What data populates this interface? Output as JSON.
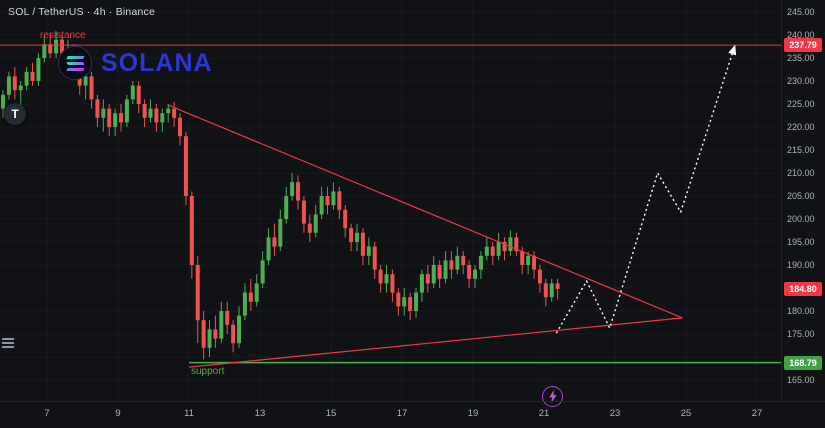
{
  "header": {
    "symbol_title": "SOL / TetherUS · 4h · Binance"
  },
  "watermark": {
    "text": "SOLANA"
  },
  "toolbar": {
    "t_badge": "T"
  },
  "annotations": {
    "resistance_label": "resistance",
    "support_label": "support"
  },
  "colors": {
    "background": "#101216",
    "up": "#4caf50",
    "down": "#ef5350",
    "line_red": "#f23645",
    "line_green": "#4caf50",
    "projection_white": "#ffffff",
    "grid": "rgba(255,255,255,0.035)",
    "axis_text": "#aeb3bd",
    "tag_red": "#f23645",
    "tag_green": "#43a047",
    "watermark_blue": "#2b36d9",
    "boost_purple": "#a845d0"
  },
  "price_axis": {
    "ticks": [
      {
        "v": 245,
        "label": "245.00"
      },
      {
        "v": 240,
        "label": "240.00"
      },
      {
        "v": 235,
        "label": "235.00"
      },
      {
        "v": 230,
        "label": "230.00"
      },
      {
        "v": 225,
        "label": "225.00"
      },
      {
        "v": 220,
        "label": "220.00"
      },
      {
        "v": 215,
        "label": "215.00"
      },
      {
        "v": 210,
        "label": "210.00"
      },
      {
        "v": 205,
        "label": "205.00"
      },
      {
        "v": 200,
        "label": "200.00"
      },
      {
        "v": 195,
        "label": "195.00"
      },
      {
        "v": 190,
        "label": "190.00"
      },
      {
        "v": 180,
        "label": "180.00"
      },
      {
        "v": 175,
        "label": "175.00"
      },
      {
        "v": 165,
        "label": "165.00"
      }
    ],
    "tags": [
      {
        "v": 237.79,
        "label": "237.79",
        "bg": "#f23645"
      },
      {
        "v": 184.8,
        "label": "184.80",
        "bg": "#f23645"
      },
      {
        "v": 168.79,
        "label": "168.79",
        "bg": "#43a047"
      }
    ]
  },
  "time_axis": {
    "ticks": [
      {
        "v": 7,
        "label": "7"
      },
      {
        "v": 9,
        "label": "9"
      },
      {
        "v": 11,
        "label": "11"
      },
      {
        "v": 13,
        "label": "13"
      },
      {
        "v": 15,
        "label": "15"
      },
      {
        "v": 17,
        "label": "17"
      },
      {
        "v": 19,
        "label": "19"
      },
      {
        "v": 21,
        "label": "21"
      },
      {
        "v": 23,
        "label": "23"
      },
      {
        "v": 25,
        "label": "25"
      },
      {
        "v": 27,
        "label": "27"
      }
    ]
  },
  "chart_data": {
    "type": "candlestick",
    "title": "SOL / TetherUS · 4h · Binance",
    "x_axis": {
      "unit": "day-of-month",
      "ticks": [
        7,
        9,
        11,
        13,
        15,
        17,
        19,
        21,
        23,
        25,
        27
      ],
      "visible_range": [
        5.7,
        28.9
      ]
    },
    "y_axis": {
      "visible_range": [
        160.4,
        247.6
      ],
      "tick_step": 5
    },
    "resistance_level": 237.79,
    "support_level": 168.79,
    "support_ray_start_day": 11.0,
    "last_price": 184.8,
    "triangle": {
      "upper": [
        [
          10.4,
          224.8
        ],
        [
          24.9,
          178.5
        ]
      ],
      "lower": [
        [
          11.0,
          167.8
        ],
        [
          24.9,
          178.5
        ]
      ]
    },
    "projection": [
      [
        21.35,
        175.2
      ],
      [
        22.2,
        186.5
      ],
      [
        22.85,
        176.3
      ],
      [
        24.2,
        210
      ],
      [
        24.85,
        201.5
      ],
      [
        26.35,
        237
      ]
    ],
    "candles": {
      "start_day": 5.761,
      "step_day": 0.1662,
      "ohlc_format": [
        "open",
        "high",
        "low",
        "close"
      ],
      "ohlc": [
        [
          224,
          228,
          222,
          227
        ],
        [
          227,
          232,
          226,
          231
        ],
        [
          231,
          233,
          226,
          228
        ],
        [
          228,
          230,
          224,
          229
        ],
        [
          229,
          233,
          228,
          232
        ],
        [
          232,
          234,
          229,
          230
        ],
        [
          230,
          236,
          229,
          235
        ],
        [
          235,
          240,
          234,
          238
        ],
        [
          238,
          240.5,
          235,
          236
        ],
        [
          236,
          240.8,
          235,
          239
        ],
        [
          239,
          240,
          234,
          236
        ],
        [
          236,
          239,
          234,
          237
        ],
        [
          237,
          238,
          232,
          233
        ],
        [
          233,
          234,
          227,
          229
        ],
        [
          229,
          232,
          226,
          231
        ],
        [
          231,
          232,
          224,
          226
        ],
        [
          226,
          227,
          220,
          222
        ],
        [
          222,
          226,
          219,
          224
        ],
        [
          224,
          225,
          218,
          220
        ],
        [
          220,
          224,
          218,
          223
        ],
        [
          223,
          225,
          219,
          221
        ],
        [
          221,
          227,
          220,
          226
        ],
        [
          226,
          230,
          225,
          229
        ],
        [
          229,
          230,
          223,
          225
        ],
        [
          225,
          226,
          220,
          222
        ],
        [
          222,
          226,
          221,
          224
        ],
        [
          224,
          225,
          219,
          221
        ],
        [
          221,
          224,
          219,
          223
        ],
        [
          223,
          225,
          221,
          224
        ],
        [
          224,
          225.5,
          220,
          222
        ],
        [
          222,
          223,
          216,
          218
        ],
        [
          218,
          219,
          203,
          205
        ],
        [
          205,
          206,
          187,
          190
        ],
        [
          190,
          192,
          173,
          178
        ],
        [
          178,
          180,
          169.5,
          172
        ],
        [
          172,
          178,
          170,
          176
        ],
        [
          176,
          179,
          172,
          174
        ],
        [
          174,
          182,
          173,
          180
        ],
        [
          180,
          182,
          175,
          177
        ],
        [
          177,
          178,
          171,
          173
        ],
        [
          173,
          181,
          172,
          179
        ],
        [
          179,
          186,
          178,
          184
        ],
        [
          184,
          187,
          180,
          182
        ],
        [
          182,
          188,
          181,
          186
        ],
        [
          186,
          193,
          185,
          191
        ],
        [
          191,
          198,
          190,
          196
        ],
        [
          196,
          199,
          192,
          194
        ],
        [
          194,
          202,
          193,
          200
        ],
        [
          200,
          207,
          199,
          205
        ],
        [
          205,
          210,
          204,
          208
        ],
        [
          208,
          209.5,
          202,
          204
        ],
        [
          204,
          205,
          197,
          199
        ],
        [
          199,
          201,
          195,
          197
        ],
        [
          197,
          203,
          196,
          201
        ],
        [
          201,
          207,
          200,
          205
        ],
        [
          205,
          207,
          201,
          203
        ],
        [
          203,
          208,
          202,
          206
        ],
        [
          206,
          207,
          200,
          202
        ],
        [
          202,
          203,
          196,
          198
        ],
        [
          198,
          199,
          193,
          195
        ],
        [
          195,
          199,
          193,
          197
        ],
        [
          197,
          198,
          190,
          192
        ],
        [
          192,
          196,
          190,
          194
        ],
        [
          194,
          195,
          187,
          189
        ],
        [
          189,
          190,
          184,
          186
        ],
        [
          186,
          190,
          184,
          188
        ],
        [
          188,
          189,
          182,
          184
        ],
        [
          184,
          185,
          179,
          181
        ],
        [
          181,
          185,
          179,
          183
        ],
        [
          183,
          184,
          178,
          180
        ],
        [
          180,
          185,
          178.5,
          184
        ],
        [
          184,
          189,
          182,
          188
        ],
        [
          188,
          190,
          184,
          186
        ],
        [
          186,
          192,
          185,
          190
        ],
        [
          190,
          191,
          185,
          187
        ],
        [
          187,
          193,
          186,
          191
        ],
        [
          191,
          193,
          187,
          189
        ],
        [
          189,
          194,
          188,
          192
        ],
        [
          192,
          193,
          188,
          190
        ],
        [
          190,
          191,
          185,
          187
        ],
        [
          187,
          190,
          185,
          189
        ],
        [
          189,
          193,
          187,
          192
        ],
        [
          192,
          196,
          191,
          194
        ],
        [
          194,
          195,
          190,
          192
        ],
        [
          192,
          197,
          191,
          195
        ],
        [
          195,
          196,
          191,
          193
        ],
        [
          193,
          197.5,
          192,
          196
        ],
        [
          196,
          197,
          192,
          193
        ],
        [
          193,
          194,
          188,
          190
        ],
        [
          190,
          193,
          188,
          192
        ],
        [
          192,
          193,
          187,
          189
        ],
        [
          189,
          190,
          184,
          186
        ],
        [
          186,
          187,
          181,
          183
        ],
        [
          183,
          187,
          182,
          186
        ],
        [
          186,
          187,
          182.5,
          184.8
        ]
      ]
    }
  }
}
